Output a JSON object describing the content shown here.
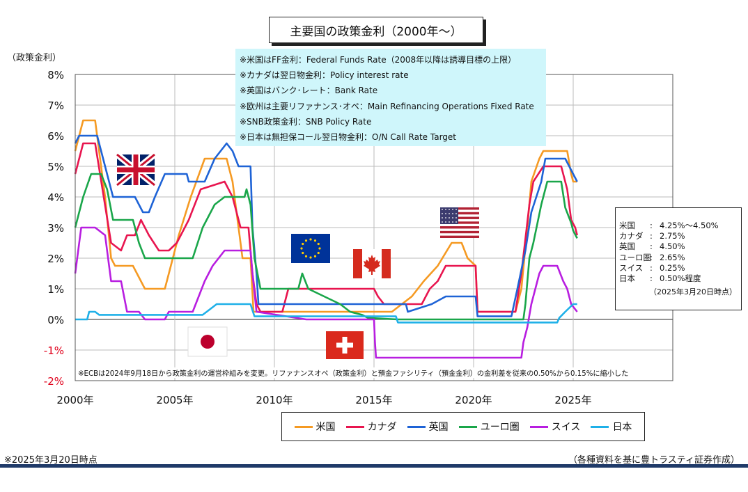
{
  "chart_data": {
    "type": "line",
    "title": "主要国の政策金利（2000年〜）",
    "ylabel": "（政策金利）",
    "xlim": [
      2000,
      2030
    ],
    "ylim": [
      -2,
      8
    ],
    "ytick_labels": [
      "-2%",
      "-1%",
      "0%",
      "1%",
      "2%",
      "3%",
      "4%",
      "5%",
      "6%",
      "7%",
      "8%"
    ],
    "ytick_values": [
      -2,
      -1,
      0,
      1,
      2,
      3,
      4,
      5,
      6,
      7,
      8
    ],
    "xtick_labels": [
      "2000年",
      "2005年",
      "2010年",
      "2015年",
      "2020年",
      "2025年"
    ],
    "xtick_values": [
      2000,
      2005,
      2010,
      2015,
      2020,
      2025
    ],
    "grid": true,
    "legend_position": "bottom",
    "series": [
      {
        "name": "米国",
        "color": "#f59a23",
        "points": [
          [
            2000,
            5.5
          ],
          [
            2000.4,
            6.5
          ],
          [
            2001,
            6.5
          ],
          [
            2001.2,
            5.5
          ],
          [
            2001.5,
            4.0
          ],
          [
            2001.8,
            2.0
          ],
          [
            2002,
            1.75
          ],
          [
            2002.9,
            1.75
          ],
          [
            2003.5,
            1.0
          ],
          [
            2004.5,
            1.0
          ],
          [
            2004.8,
            1.75
          ],
          [
            2005.2,
            2.75
          ],
          [
            2005.8,
            4.0
          ],
          [
            2006.5,
            5.25
          ],
          [
            2007.6,
            5.25
          ],
          [
            2007.9,
            4.5
          ],
          [
            2008.2,
            3.0
          ],
          [
            2008.4,
            2.0
          ],
          [
            2008.8,
            2.0
          ],
          [
            2008.95,
            0.25
          ],
          [
            2015.9,
            0.25
          ],
          [
            2016.9,
            0.75
          ],
          [
            2017.5,
            1.25
          ],
          [
            2018.2,
            1.75
          ],
          [
            2018.9,
            2.5
          ],
          [
            2019.4,
            2.5
          ],
          [
            2019.7,
            2.0
          ],
          [
            2020.1,
            1.75
          ],
          [
            2020.2,
            0.25
          ],
          [
            2022.1,
            0.25
          ],
          [
            2022.4,
            1.0
          ],
          [
            2022.7,
            3.0
          ],
          [
            2022.9,
            4.5
          ],
          [
            2023.3,
            5.25
          ],
          [
            2023.5,
            5.5
          ],
          [
            2024.7,
            5.5
          ],
          [
            2024.9,
            4.75
          ],
          [
            2025.0,
            4.5
          ],
          [
            2025.2,
            4.5
          ]
        ]
      },
      {
        "name": "カナダ",
        "color": "#e8154f",
        "points": [
          [
            2000,
            4.75
          ],
          [
            2000.4,
            5.75
          ],
          [
            2001,
            5.75
          ],
          [
            2001.8,
            2.5
          ],
          [
            2002.3,
            2.25
          ],
          [
            2002.6,
            2.75
          ],
          [
            2003,
            2.75
          ],
          [
            2003.3,
            3.25
          ],
          [
            2003.7,
            2.75
          ],
          [
            2004.2,
            2.25
          ],
          [
            2004.7,
            2.25
          ],
          [
            2005.1,
            2.5
          ],
          [
            2005.7,
            3.25
          ],
          [
            2006.3,
            4.25
          ],
          [
            2007.5,
            4.5
          ],
          [
            2007.9,
            4.0
          ],
          [
            2008.3,
            3.0
          ],
          [
            2008.7,
            3.0
          ],
          [
            2008.9,
            1.5
          ],
          [
            2009.1,
            0.5
          ],
          [
            2009.3,
            0.25
          ],
          [
            2010.4,
            0.25
          ],
          [
            2010.7,
            1.0
          ],
          [
            2015,
            1.0
          ],
          [
            2015.2,
            0.75
          ],
          [
            2015.5,
            0.5
          ],
          [
            2017.4,
            0.5
          ],
          [
            2017.8,
            1.0
          ],
          [
            2018.2,
            1.25
          ],
          [
            2018.6,
            1.75
          ],
          [
            2020.1,
            1.75
          ],
          [
            2020.2,
            0.25
          ],
          [
            2022.1,
            0.25
          ],
          [
            2022.4,
            1.5
          ],
          [
            2022.8,
            3.75
          ],
          [
            2023,
            4.5
          ],
          [
            2023.5,
            5.0
          ],
          [
            2024.4,
            5.0
          ],
          [
            2024.7,
            4.25
          ],
          [
            2024.9,
            3.25
          ],
          [
            2025.1,
            3.0
          ],
          [
            2025.2,
            2.75
          ]
        ]
      },
      {
        "name": "英国",
        "color": "#1e63d6",
        "points": [
          [
            2000,
            5.75
          ],
          [
            2000.2,
            6.0
          ],
          [
            2001.1,
            6.0
          ],
          [
            2001.5,
            5.0
          ],
          [
            2001.9,
            4.0
          ],
          [
            2003.0,
            4.0
          ],
          [
            2003.4,
            3.5
          ],
          [
            2003.7,
            3.5
          ],
          [
            2004.0,
            4.0
          ],
          [
            2004.5,
            4.75
          ],
          [
            2005.6,
            4.75
          ],
          [
            2005.7,
            4.5
          ],
          [
            2006.5,
            4.5
          ],
          [
            2007.0,
            5.25
          ],
          [
            2007.6,
            5.75
          ],
          [
            2007.9,
            5.5
          ],
          [
            2008.2,
            5.0
          ],
          [
            2008.8,
            5.0
          ],
          [
            2008.9,
            3.0
          ],
          [
            2009.1,
            1.5
          ],
          [
            2009.2,
            0.5
          ],
          [
            2016.6,
            0.5
          ],
          [
            2016.7,
            0.25
          ],
          [
            2017.9,
            0.5
          ],
          [
            2018.6,
            0.75
          ],
          [
            2020.1,
            0.75
          ],
          [
            2020.2,
            0.1
          ],
          [
            2021.9,
            0.1
          ],
          [
            2022.2,
            1.0
          ],
          [
            2022.6,
            2.25
          ],
          [
            2022.9,
            3.5
          ],
          [
            2023.4,
            4.5
          ],
          [
            2023.6,
            5.25
          ],
          [
            2024.6,
            5.25
          ],
          [
            2024.8,
            5.0
          ],
          [
            2025.0,
            4.75
          ],
          [
            2025.2,
            4.5
          ]
        ]
      },
      {
        "name": "ユーロ圏",
        "color": "#1aa64a",
        "points": [
          [
            2000,
            3.0
          ],
          [
            2000.4,
            4.0
          ],
          [
            2000.8,
            4.75
          ],
          [
            2001.3,
            4.75
          ],
          [
            2001.6,
            4.25
          ],
          [
            2001.9,
            3.25
          ],
          [
            2002.9,
            3.25
          ],
          [
            2003.2,
            2.5
          ],
          [
            2003.5,
            2.0
          ],
          [
            2005.9,
            2.0
          ],
          [
            2006.4,
            3.0
          ],
          [
            2007.0,
            3.75
          ],
          [
            2007.5,
            4.0
          ],
          [
            2008.5,
            4.0
          ],
          [
            2008.6,
            4.25
          ],
          [
            2008.8,
            3.75
          ],
          [
            2009.0,
            2.0
          ],
          [
            2009.3,
            1.0
          ],
          [
            2011.2,
            1.0
          ],
          [
            2011.4,
            1.5
          ],
          [
            2011.7,
            1.0
          ],
          [
            2012.5,
            0.75
          ],
          [
            2013.3,
            0.5
          ],
          [
            2013.8,
            0.25
          ],
          [
            2014.4,
            0.15
          ],
          [
            2014.7,
            0.05
          ],
          [
            2016.2,
            0.0
          ],
          [
            2022.5,
            0.0
          ],
          [
            2022.6,
            0.5
          ],
          [
            2022.8,
            2.0
          ],
          [
            2023.0,
            2.5
          ],
          [
            2023.4,
            3.75
          ],
          [
            2023.7,
            4.5
          ],
          [
            2024.4,
            4.5
          ],
          [
            2024.6,
            3.65
          ],
          [
            2024.9,
            3.15
          ],
          [
            2025.0,
            2.9
          ],
          [
            2025.2,
            2.65
          ]
        ]
      },
      {
        "name": "スイス",
        "color": "#b81ee0",
        "points": [
          [
            2000,
            1.5
          ],
          [
            2000.3,
            3.0
          ],
          [
            2001.0,
            3.0
          ],
          [
            2001.5,
            2.75
          ],
          [
            2001.8,
            1.25
          ],
          [
            2002.3,
            1.25
          ],
          [
            2002.6,
            0.25
          ],
          [
            2003.2,
            0.25
          ],
          [
            2003.5,
            0.0
          ],
          [
            2004.5,
            0.0
          ],
          [
            2004.7,
            0.25
          ],
          [
            2005.9,
            0.25
          ],
          [
            2006.5,
            1.25
          ],
          [
            2006.9,
            1.75
          ],
          [
            2007.5,
            2.25
          ],
          [
            2008.8,
            2.25
          ],
          [
            2008.9,
            1.5
          ],
          [
            2009.1,
            0.25
          ],
          [
            2011.6,
            0.0
          ],
          [
            2015.0,
            0.0
          ],
          [
            2015.05,
            -0.75
          ],
          [
            2015.1,
            -1.25
          ],
          [
            2022.4,
            -1.25
          ],
          [
            2022.5,
            -0.75
          ],
          [
            2022.7,
            -0.25
          ],
          [
            2022.9,
            0.5
          ],
          [
            2023.3,
            1.5
          ],
          [
            2023.5,
            1.75
          ],
          [
            2024.2,
            1.75
          ],
          [
            2024.5,
            1.25
          ],
          [
            2024.7,
            1.0
          ],
          [
            2024.9,
            0.5
          ],
          [
            2025.2,
            0.25
          ]
        ]
      },
      {
        "name": "日本",
        "color": "#1fb0e8",
        "points": [
          [
            2000,
            0.0
          ],
          [
            2000.6,
            0.0
          ],
          [
            2000.7,
            0.25
          ],
          [
            2001.0,
            0.25
          ],
          [
            2001.2,
            0.15
          ],
          [
            2006.4,
            0.15
          ],
          [
            2006.6,
            0.25
          ],
          [
            2007.1,
            0.5
          ],
          [
            2008.8,
            0.5
          ],
          [
            2008.9,
            0.3
          ],
          [
            2009.0,
            0.1
          ],
          [
            2016.1,
            0.1
          ],
          [
            2016.2,
            -0.1
          ],
          [
            2024.2,
            -0.1
          ],
          [
            2024.3,
            0.05
          ],
          [
            2024.6,
            0.25
          ],
          [
            2025.0,
            0.5
          ],
          [
            2025.2,
            0.5
          ]
        ]
      }
    ]
  },
  "note_lines": [
    "※米国はFF金利：Federal  Funds Rate（2008年以降は誘導目標の上限）",
    "※カナダは翌日物金利：Policy  interest rate",
    "※英国はバンク･レート：Bank  Rate",
    "※欧州は主要リファナンス･オペ：Main  Refinancing Operations Fixed Rate",
    "※SNB政策金利：SNB  Policy  Rate",
    "※日本は無担保コール翌日物金利：O/N  Call Rate Target"
  ],
  "rates_box": {
    "rows": [
      {
        "country": "米国",
        "colon": ":",
        "value": "4.25%〜4.50%"
      },
      {
        "country": "カナダ",
        "colon": ":",
        "value": "2.75%"
      },
      {
        "country": "英国",
        "colon": ":",
        "value": "4.50%"
      },
      {
        "country": "ユーロ圏",
        "colon": ":",
        "value": "2.65%"
      },
      {
        "country": "スイス",
        "colon": ":",
        "value": "0.25%"
      },
      {
        "country": "日本",
        "colon": ":",
        "value": "0.50%程度"
      }
    ],
    "date": "（2025年3月20日時点）"
  },
  "ecb_note": "※ECBは2024年9月18日から政策金利の運営枠組みを変更。リファナンスオペ（政策金利）と預金ファシリティ（預金金利）の金利差を従来の0.50%から0.15%に縮小した",
  "footer_left": "※2025年3月20日時点",
  "footer_right": "（各種資料を基に豊トラスティ証券作成）",
  "flags": {
    "uk": {
      "icon": "uk-flag-icon",
      "color_blue": "#012169",
      "color_red": "#c8102e"
    },
    "eu": {
      "icon": "eu-flag-icon",
      "color_blue": "#003399",
      "color_star": "#ffcc00"
    },
    "canada": {
      "icon": "canada-flag-icon",
      "color_red": "#d52b1e"
    },
    "usa": {
      "icon": "usa-flag-icon",
      "color_red": "#b22234",
      "color_blue": "#3c3b6e"
    },
    "japan": {
      "icon": "japan-flag-icon",
      "color_red": "#bc002d"
    },
    "swiss": {
      "icon": "swiss-flag-icon",
      "color_red": "#da291c"
    }
  }
}
